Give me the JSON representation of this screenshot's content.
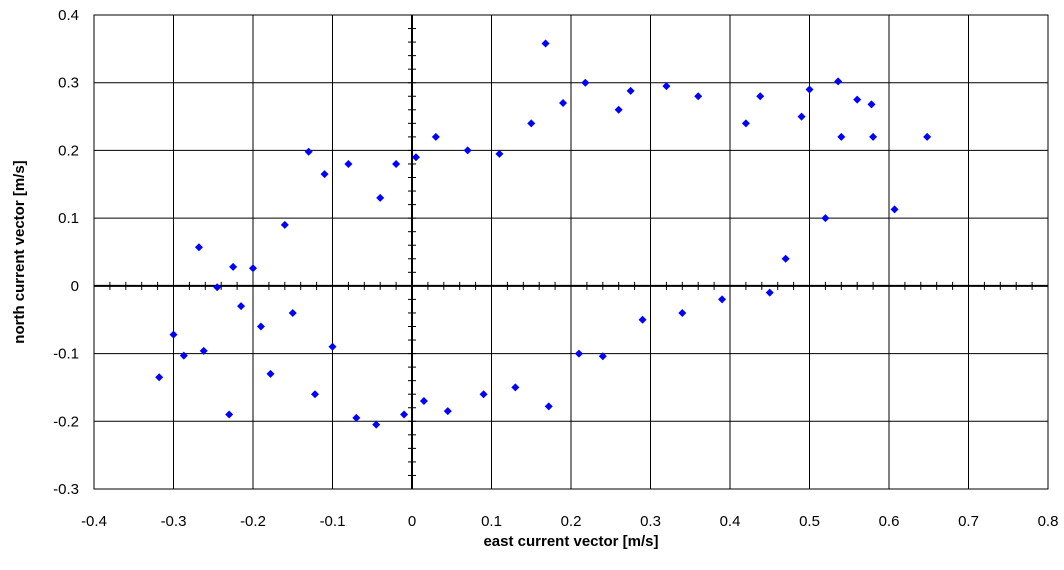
{
  "chart_data": {
    "type": "scatter",
    "title": "",
    "xlabel": "east current vector [m/s]",
    "ylabel": "north current vector [m/s]",
    "xlim": [
      -0.4,
      0.8
    ],
    "ylim": [
      -0.3,
      0.4
    ],
    "xticks": [
      "-0.4",
      "-0.3",
      "-0.2",
      "-0.1",
      "0",
      "0.1",
      "0.2",
      "0.3",
      "0.4",
      "0.5",
      "0.6",
      "0.7",
      "0.8"
    ],
    "yticks": [
      "0.4",
      "0.3",
      "0.2",
      "0.1",
      "0",
      "-0.1",
      "-0.2",
      "-0.3"
    ],
    "grid": true,
    "marker": "diamond",
    "marker_color": "#0000FF",
    "series": [
      {
        "points": [
          [
            -0.318,
            -0.135
          ],
          [
            -0.3,
            -0.072
          ],
          [
            -0.287,
            -0.103
          ],
          [
            -0.268,
            0.057
          ],
          [
            -0.262,
            -0.096
          ],
          [
            -0.245,
            -0.002
          ],
          [
            -0.23,
            -0.19
          ],
          [
            -0.225,
            0.028
          ],
          [
            -0.215,
            -0.03
          ],
          [
            -0.2,
            0.026
          ],
          [
            -0.19,
            -0.06
          ],
          [
            -0.178,
            -0.13
          ],
          [
            -0.16,
            0.09
          ],
          [
            -0.15,
            -0.04
          ],
          [
            -0.13,
            0.198
          ],
          [
            -0.122,
            -0.16
          ],
          [
            -0.11,
            0.165
          ],
          [
            -0.1,
            -0.09
          ],
          [
            -0.08,
            0.18
          ],
          [
            -0.07,
            -0.195
          ],
          [
            -0.045,
            -0.205
          ],
          [
            -0.04,
            0.13
          ],
          [
            -0.02,
            0.18
          ],
          [
            -0.01,
            -0.19
          ],
          [
            0.005,
            0.19
          ],
          [
            0.015,
            -0.17
          ],
          [
            0.03,
            0.22
          ],
          [
            0.045,
            -0.185
          ],
          [
            0.07,
            0.2
          ],
          [
            0.09,
            -0.16
          ],
          [
            0.11,
            0.195
          ],
          [
            0.13,
            -0.15
          ],
          [
            0.15,
            0.24
          ],
          [
            0.168,
            0.358
          ],
          [
            0.172,
            -0.178
          ],
          [
            0.19,
            0.27
          ],
          [
            0.21,
            -0.1
          ],
          [
            0.218,
            0.3
          ],
          [
            0.24,
            -0.104
          ],
          [
            0.26,
            0.26
          ],
          [
            0.275,
            0.288
          ],
          [
            0.29,
            -0.05
          ],
          [
            0.32,
            0.295
          ],
          [
            0.34,
            -0.04
          ],
          [
            0.36,
            0.28
          ],
          [
            0.39,
            -0.02
          ],
          [
            0.42,
            0.24
          ],
          [
            0.438,
            0.28
          ],
          [
            0.45,
            -0.01
          ],
          [
            0.47,
            0.04
          ],
          [
            0.49,
            0.25
          ],
          [
            0.5,
            0.29
          ],
          [
            0.52,
            0.1
          ],
          [
            0.536,
            0.302
          ],
          [
            0.54,
            0.22
          ],
          [
            0.56,
            0.275
          ],
          [
            0.578,
            0.268
          ],
          [
            0.58,
            0.22
          ],
          [
            0.607,
            0.113
          ],
          [
            0.648,
            0.22
          ]
        ]
      }
    ]
  }
}
